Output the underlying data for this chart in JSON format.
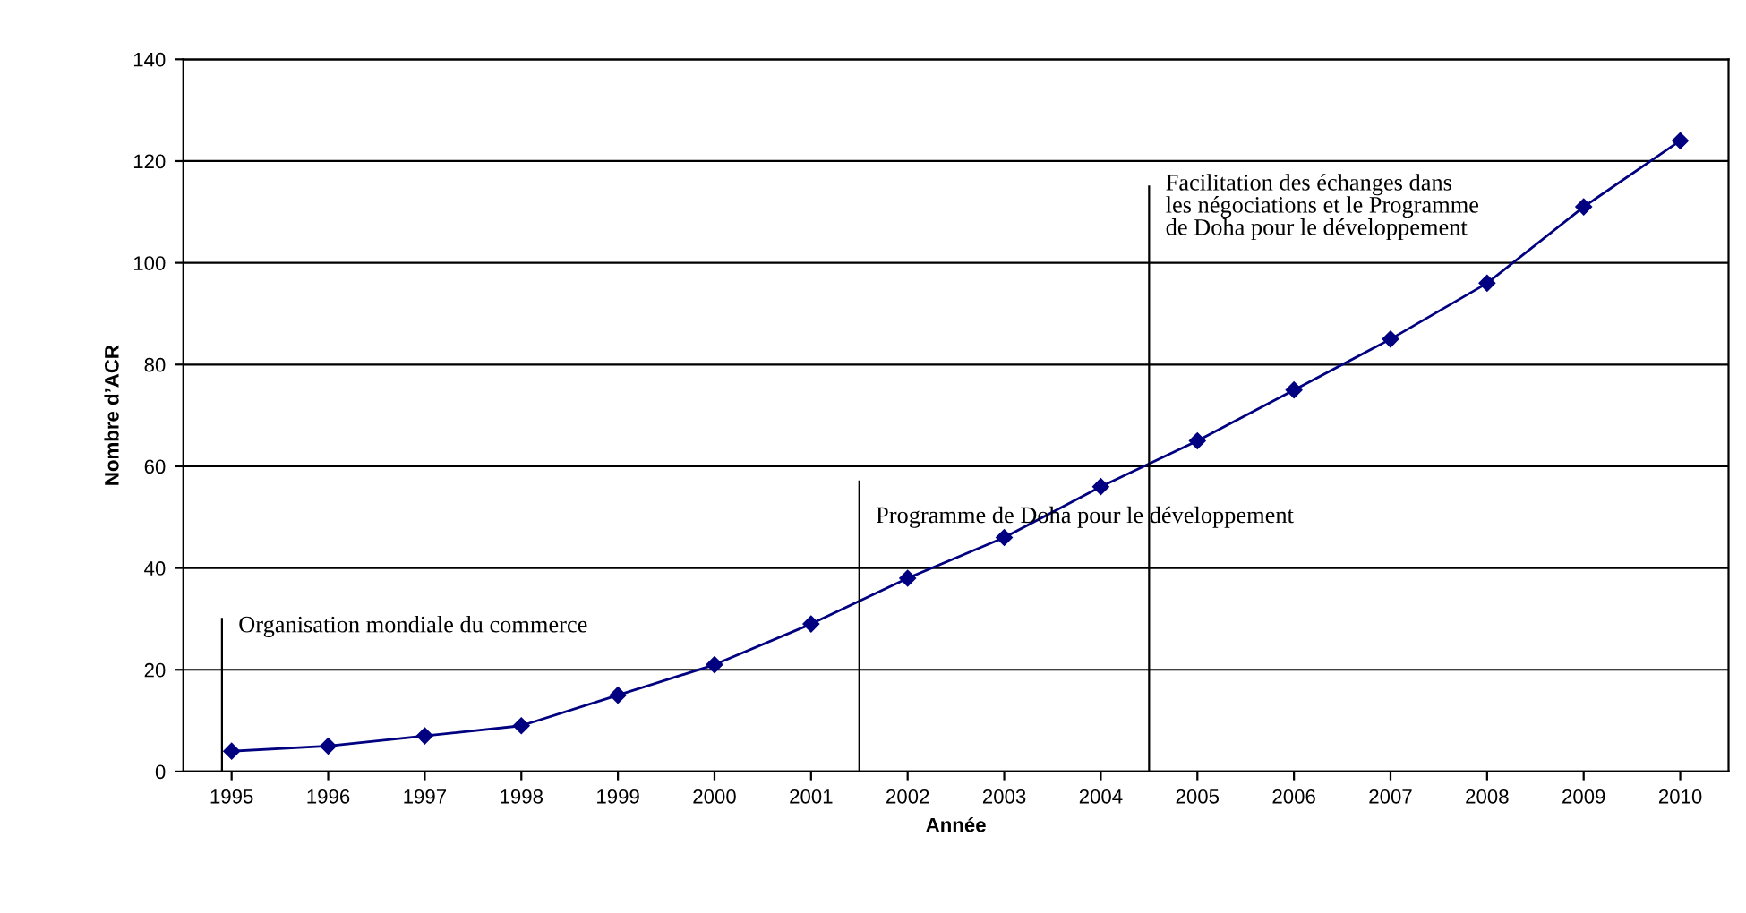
{
  "chart_data": {
    "type": "line",
    "xlabel": "Année",
    "ylabel": "Nombre d’ACR",
    "x": [
      1995,
      1996,
      1997,
      1998,
      1999,
      2000,
      2001,
      2002,
      2003,
      2004,
      2005,
      2006,
      2007,
      2008,
      2009,
      2010
    ],
    "series": [
      {
        "color": "#000080",
        "values": [
          4,
          5,
          7,
          9,
          15,
          21,
          29,
          38,
          46,
          56,
          65,
          75,
          85,
          96,
          111,
          124
        ]
      }
    ],
    "marker": "diamond",
    "line_style": "solid",
    "xlim": [
      1994.5,
      2010.5
    ],
    "xticks": [
      1995,
      1996,
      1997,
      1998,
      1999,
      2000,
      2001,
      2002,
      2003,
      2004,
      2005,
      2006,
      2007,
      2008,
      2009,
      2010
    ],
    "ylim": [
      0,
      140
    ],
    "yticks": [
      0,
      20,
      40,
      60,
      80,
      100,
      120,
      140
    ],
    "grid": "y",
    "legend": false,
    "ref_lines": [
      {
        "axis": "x",
        "value": 1994.9,
        "label": "Organisation mondiale du commerce",
        "color": "#000000"
      },
      {
        "axis": "x",
        "value": 2001.5,
        "label": "Programme de Doha pour le développement",
        "color": "#000000"
      },
      {
        "axis": "x",
        "value": 2004.5,
        "label": "Facilitation des échanges dans\nles négociations et le Programme\nde Doha pour le développement",
        "color": "#000000"
      }
    ]
  }
}
